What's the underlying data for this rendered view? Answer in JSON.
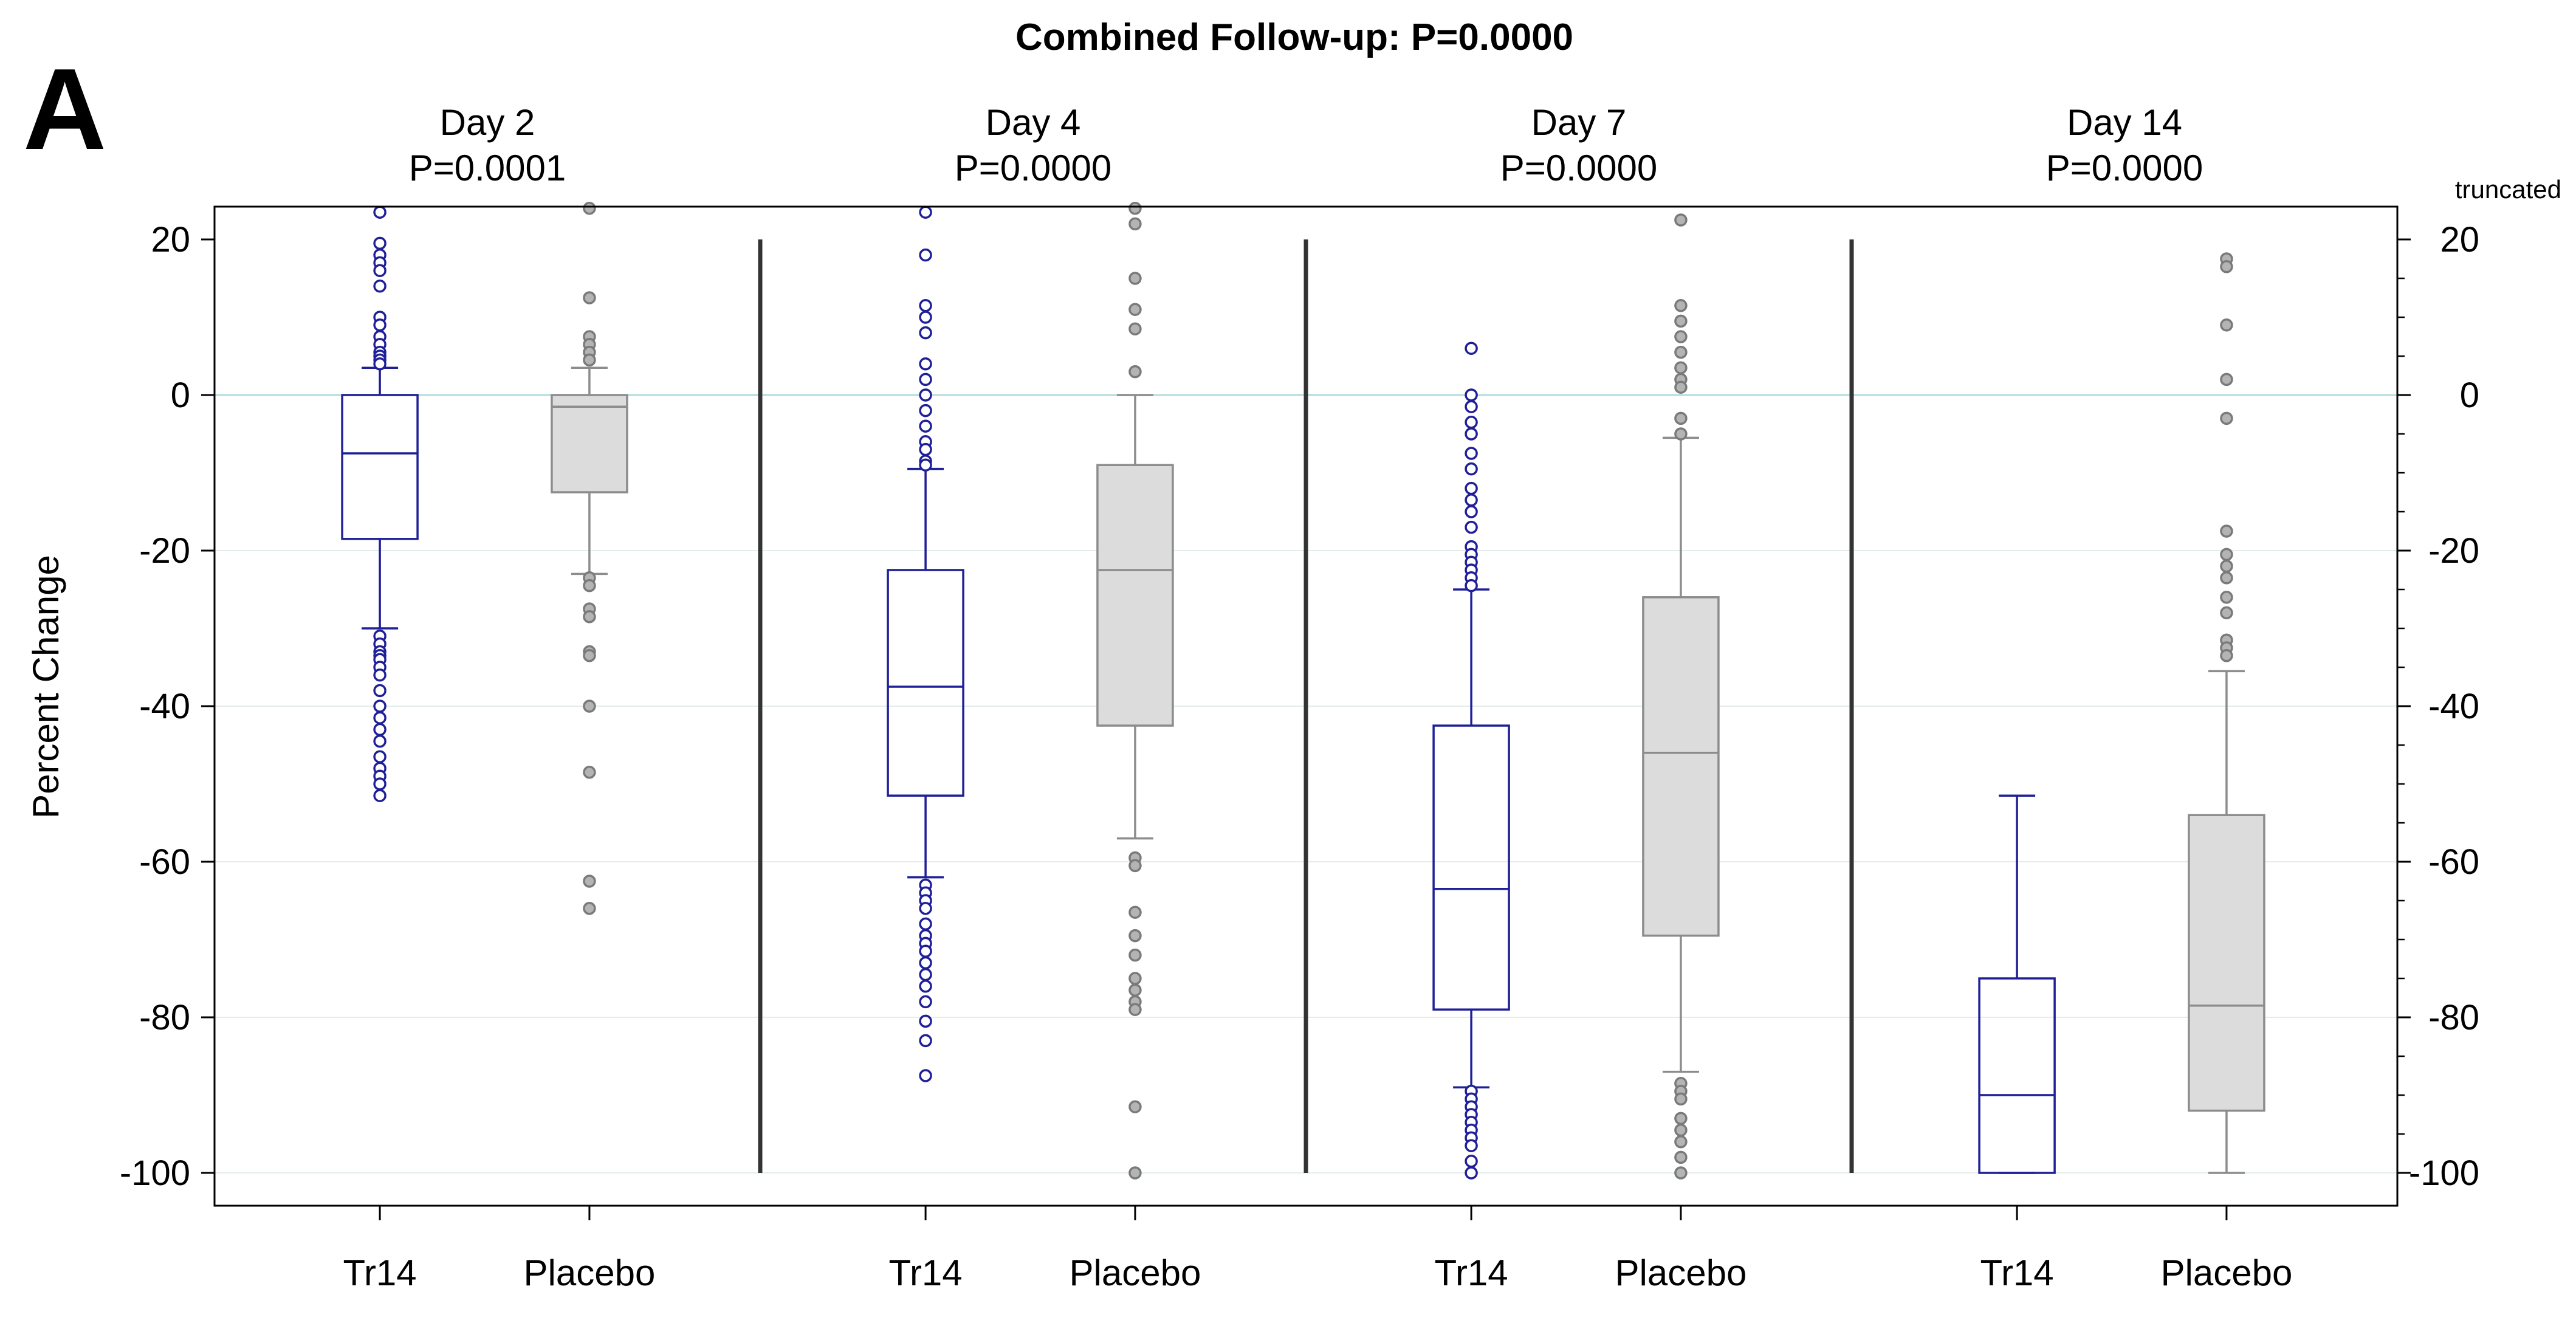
{
  "chart_data": {
    "type": "boxplot",
    "panel_label": "A",
    "title": "Combined Follow-up: P=0.0000",
    "ylabel": "Percent Change",
    "ylim": [
      -104,
      24
    ],
    "yticks": [
      20,
      0,
      -20,
      -40,
      -60,
      -80,
      -100
    ],
    "truncated_note": "truncated",
    "colors": {
      "Tr14": "#1f1f99",
      "Placebo": "#8c8c8c",
      "placebo_fill": "#dcdcdc"
    },
    "panels": [
      {
        "day": "Day 2",
        "p": "P=0.0001",
        "groups": [
          {
            "name": "Tr14",
            "q1": -18.5,
            "median": -7.5,
            "q3": 0,
            "whisker_low": -30,
            "whisker_high": 3.5,
            "outliers": [
              23.5,
              19.5,
              18,
              17,
              16,
              14,
              10,
              9,
              7.5,
              6.5,
              5.5,
              5,
              4.5,
              4,
              -31,
              -32,
              -33,
              -33.5,
              -34,
              -35,
              -36,
              -38,
              -40,
              -41.5,
              -43,
              -44.5,
              -46.5,
              -48,
              -49,
              -50,
              -51.5
            ]
          },
          {
            "name": "Placebo",
            "q1": -12.5,
            "median": -1.5,
            "q3": 0,
            "whisker_low": -23,
            "whisker_high": 3.5,
            "outliers": [
              24,
              12.5,
              7.5,
              6.5,
              5.5,
              4.5,
              -23.5,
              -24.5,
              -27.5,
              -28.5,
              -33,
              -33.5,
              -40,
              -48.5,
              -62.5,
              -66
            ]
          }
        ]
      },
      {
        "day": "Day 4",
        "p": "P=0.0000",
        "groups": [
          {
            "name": "Tr14",
            "q1": -51.5,
            "median": -37.5,
            "q3": -22.5,
            "whisker_low": -62,
            "whisker_high": -9.5,
            "outliers": [
              23.5,
              18,
              11.5,
              10,
              8,
              4,
              2,
              0,
              -2,
              -4,
              -6,
              -7,
              -8.5,
              -9,
              -63,
              -64,
              -65,
              -66,
              -68,
              -69.5,
              -70.5,
              -71.5,
              -73,
              -74.5,
              -76,
              -78,
              -80.5,
              -83,
              -87.5
            ]
          },
          {
            "name": "Placebo",
            "q1": -42.5,
            "median": -22.5,
            "q3": -9,
            "whisker_low": -57,
            "whisker_high": 0,
            "outliers": [
              24,
              22,
              15,
              11,
              8.5,
              3,
              -59.5,
              -60.5,
              -66.5,
              -69.5,
              -72,
              -75,
              -76.5,
              -78,
              -79,
              -91.5,
              -100
            ]
          }
        ]
      },
      {
        "day": "Day 7",
        "p": "P=0.0000",
        "groups": [
          {
            "name": "Tr14",
            "q1": -79,
            "median": -63.5,
            "q3": -42.5,
            "whisker_low": -89,
            "whisker_high": -25,
            "outliers": [
              6,
              0,
              -1.5,
              -3.5,
              -5,
              -7.5,
              -9.5,
              -12,
              -13.5,
              -15,
              -17,
              -19.5,
              -20.5,
              -21.5,
              -22.5,
              -23.5,
              -24.5,
              -89.5,
              -90.5,
              -91.5,
              -92.5,
              -93.5,
              -94.5,
              -95.5,
              -96.5,
              -98.5,
              -100
            ]
          },
          {
            "name": "Placebo",
            "q1": -69.5,
            "median": -46,
            "q3": -26,
            "whisker_low": -87,
            "whisker_high": -5.5,
            "outliers": [
              22.5,
              11.5,
              9.5,
              7.5,
              5.5,
              3.5,
              2,
              1,
              -3,
              -5,
              -88.5,
              -89.5,
              -90.5,
              -93,
              -94.5,
              -96,
              -98,
              -100
            ]
          }
        ]
      },
      {
        "day": "Day 14",
        "p": "P=0.0000",
        "groups": [
          {
            "name": "Tr14",
            "q1": -100,
            "median": -90,
            "q3": -75,
            "whisker_low": -100,
            "whisker_high": -51.5,
            "outliers": []
          },
          {
            "name": "Placebo",
            "q1": -92,
            "median": -78.5,
            "q3": -54,
            "whisker_low": -100,
            "whisker_high": -35.5,
            "outliers": [
              17.5,
              16.5,
              9,
              2,
              -3,
              -17.5,
              -20.5,
              -22,
              -23.5,
              -26,
              -28,
              -31.5,
              -32.5,
              -33.5
            ]
          }
        ]
      }
    ]
  }
}
